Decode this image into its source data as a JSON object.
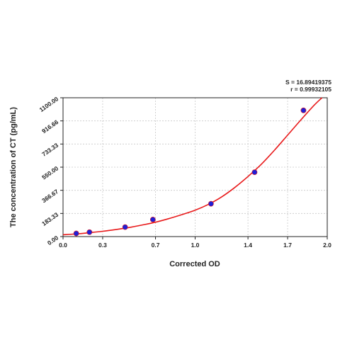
{
  "stats": {
    "s_text": "S = 16.89419375",
    "r_text": "r = 0.99932105"
  },
  "colors": {
    "curve": "#e8191a",
    "points": "#1f1fd6",
    "grid": "#c8c8c8",
    "axis": "#222222"
  },
  "chart_data": {
    "type": "scatter",
    "title": "",
    "xlabel": "Corrected OD",
    "ylabel": "The concentration of CT (pg/mL)",
    "xlim": [
      0.0,
      2.0
    ],
    "ylim": [
      0.0,
      1100.0
    ],
    "x_ticks": [
      "0.0",
      "0.3",
      "0.7",
      "1.0",
      "1.4",
      "1.7",
      "2.0"
    ],
    "y_ticks": [
      "0.00",
      "183.33",
      "366.67",
      "550.00",
      "733.33",
      "916.66",
      "1100.00"
    ],
    "grid": true,
    "series": [
      {
        "type": "scatter",
        "x": [
          0.1,
          0.2,
          0.47,
          0.68,
          1.12,
          1.45,
          1.82
        ],
        "y": [
          25,
          35,
          75,
          135,
          260,
          510,
          1000
        ]
      },
      {
        "type": "line",
        "x": [
          0.0,
          0.1,
          0.2,
          0.3,
          0.4,
          0.5,
          0.6,
          0.7,
          0.8,
          0.9,
          1.0,
          1.1,
          1.2,
          1.3,
          1.4,
          1.5,
          1.6,
          1.7,
          1.8,
          1.9,
          1.96
        ],
        "y": [
          15,
          21,
          31,
          42,
          56,
          72,
          92,
          114,
          142,
          174,
          209,
          255,
          314,
          389,
          476,
          572,
          684,
          804,
          924,
          1040,
          1100
        ]
      }
    ]
  }
}
